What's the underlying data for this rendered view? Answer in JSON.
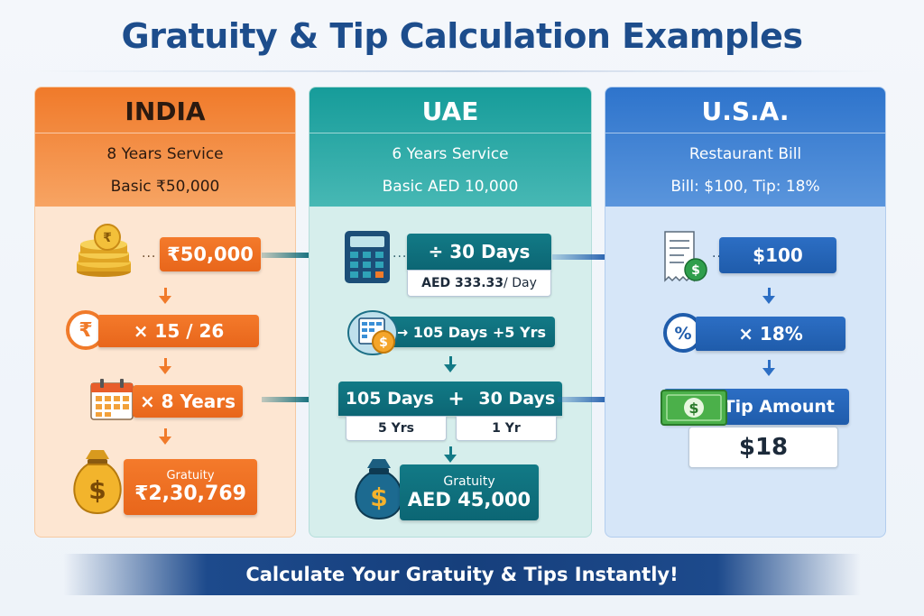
{
  "title": "Gratuity & Tip Calculation Examples",
  "footer": "Calculate Your Gratuity & Tips Instantly!",
  "colors": {
    "india": "#f07a2a",
    "uae": "#127a86",
    "usa": "#2c6ec4",
    "title": "#1d4d8c"
  },
  "india": {
    "name": "INDIA",
    "sub1": "8 Years Service",
    "sub2": "Basic ₹50,000",
    "step1": "₹50,000",
    "step2": "× 15 / 26",
    "step3": "× 8 Years",
    "result_label": "Gratuity",
    "result_value": "₹2,30,769",
    "icons": [
      "coin-stack-icon",
      "rupee-icon",
      "calendar-icon",
      "money-bag-icon"
    ]
  },
  "uae": {
    "name": "UAE",
    "sub1": "6 Years Service",
    "sub2": "Basic AED 10,000",
    "step1": "÷ 30 Days",
    "step1_rate": "AED 333.33",
    "step1_rate_unit": " / Day",
    "step2": "→ 105 Days +5 Yrs",
    "step3_left": "105 Days",
    "step3_plus": "+",
    "step3_right": "30 Days",
    "step3_left_sub": "5 Yrs",
    "step3_right_sub": "1 Yr",
    "result_label": "Gratuity",
    "result_value": "AED 45,000",
    "icons": [
      "calculator-icon",
      "spreadsheet-coin-icon",
      "money-bag-icon"
    ]
  },
  "usa": {
    "name": "U.S.A.",
    "sub1": "Restaurant Bill",
    "sub2": "Bill: $100, Tip: 18%",
    "step1": "$100",
    "step2": "× 18%",
    "step3": "Tip Amount",
    "result_value": "$18",
    "icons": [
      "receipt-icon",
      "percent-icon",
      "dollar-bill-icon"
    ]
  }
}
